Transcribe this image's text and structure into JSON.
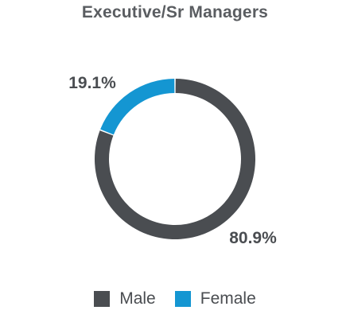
{
  "chart_data": {
    "type": "pie",
    "donut": true,
    "title": "Executive/Sr Managers",
    "slices": [
      {
        "name": "Male",
        "value": 80.9,
        "label": "80.9%",
        "color": "#4a4d51"
      },
      {
        "name": "Female",
        "value": 19.1,
        "label": "19.1%",
        "color": "#1496d2"
      }
    ],
    "legend_placement": "bottom"
  }
}
